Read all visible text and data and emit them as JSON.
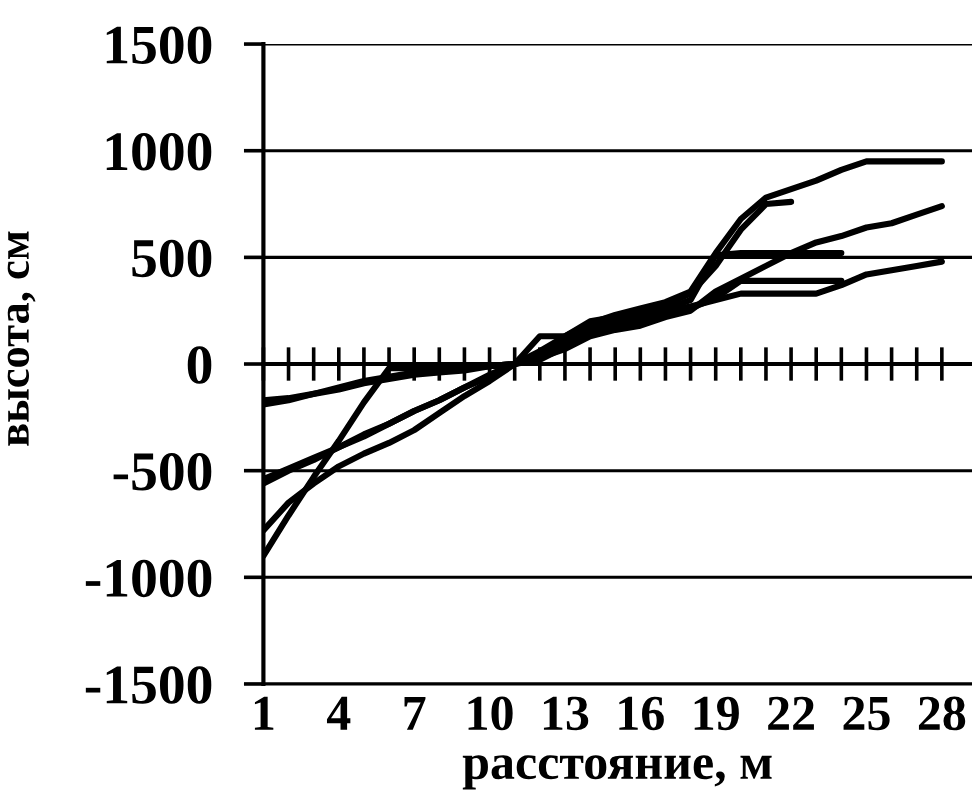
{
  "chart_data": {
    "type": "line",
    "xlabel": "расстояние, м",
    "ylabel": "высота, см",
    "categories": [
      "1",
      null,
      null,
      "4",
      null,
      null,
      "7",
      null,
      null,
      "10",
      null,
      null,
      "13",
      null,
      null,
      "16",
      null,
      null,
      "19",
      null,
      null,
      "22",
      null,
      null,
      "25",
      null,
      null,
      "28"
    ],
    "series": [
      {
        "color": "#000000",
        "values": [
          -170,
          -160,
          -140,
          -110,
          -80,
          -60,
          -40,
          -30,
          -20,
          -10,
          0,
          60,
          130,
          190,
          230,
          260,
          290,
          340,
          520,
          680,
          780,
          820,
          860,
          910,
          950,
          950,
          950,
          950
        ]
      },
      {
        "color": "#000000",
        "values": [
          -560,
          -500,
          -450,
          -390,
          -340,
          -280,
          -220,
          -170,
          -110,
          -60,
          0,
          130,
          130,
          200,
          220,
          250,
          280,
          330,
          460,
          630,
          750,
          760,
          null,
          null,
          null,
          null,
          null,
          null
        ]
      },
      {
        "color": "#000000",
        "values": [
          -900,
          -710,
          -530,
          -360,
          -180,
          -20,
          -20,
          -10,
          -10,
          -10,
          0,
          30,
          70,
          130,
          160,
          180,
          220,
          250,
          340,
          400,
          460,
          520,
          570,
          600,
          640,
          660,
          700,
          740
        ]
      },
      {
        "color": "#000000",
        "values": [
          -780,
          -650,
          -560,
          -480,
          -420,
          -370,
          -310,
          -230,
          -150,
          -80,
          0,
          40,
          100,
          150,
          190,
          220,
          250,
          270,
          300,
          330,
          330,
          330,
          330,
          370,
          420,
          440,
          460,
          480
        ]
      },
      {
        "color": "#000000",
        "values": [
          -540,
          -490,
          -440,
          -390,
          -330,
          -280,
          -220,
          -170,
          -110,
          -50,
          0,
          50,
          110,
          170,
          210,
          240,
          260,
          300,
          510,
          520,
          520,
          520,
          520,
          520,
          null,
          null,
          null,
          null
        ]
      },
      {
        "color": "#000000",
        "values": [
          -190,
          -170,
          -140,
          -120,
          -90,
          -70,
          -50,
          -40,
          -30,
          -10,
          0,
          20,
          80,
          140,
          180,
          200,
          230,
          260,
          310,
          390,
          390,
          390,
          390,
          390,
          null,
          null,
          null,
          null
        ]
      }
    ],
    "ylim": [
      -1500,
      1500
    ],
    "yticks": [
      -1500,
      -1000,
      -500,
      0,
      500,
      1000,
      1500
    ],
    "grid": "y",
    "line_style": "solid"
  }
}
